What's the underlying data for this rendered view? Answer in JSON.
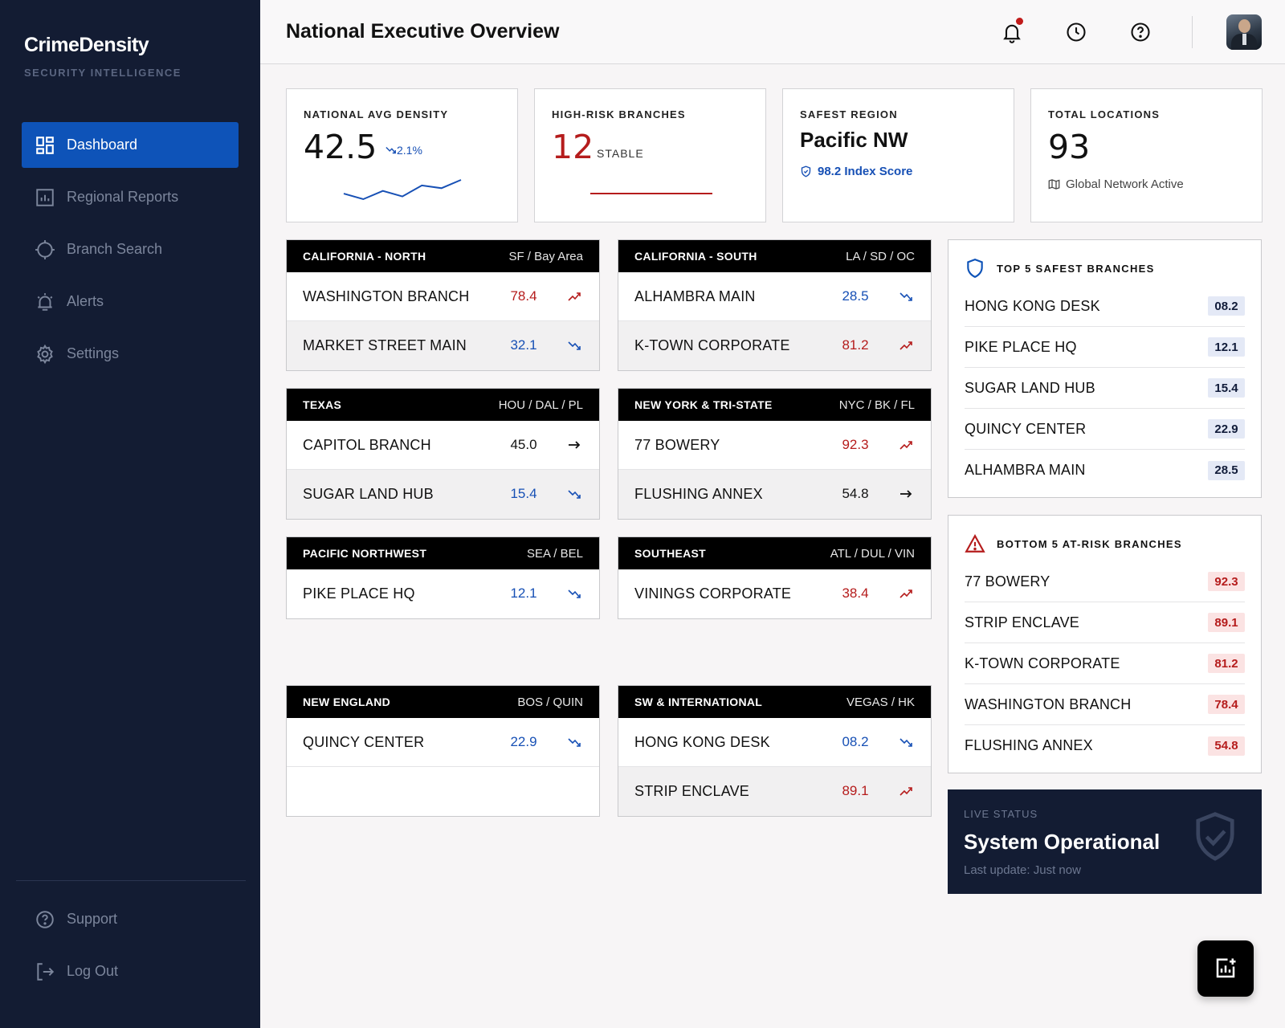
{
  "sidebar": {
    "brand": "CrimeDensity",
    "brand_sub": "SECURITY INTELLIGENCE",
    "items": [
      {
        "label": "Dashboard",
        "icon": "dashboard-icon"
      },
      {
        "label": "Regional Reports",
        "icon": "bar-chart-icon"
      },
      {
        "label": "Branch Search",
        "icon": "crosshair-icon"
      },
      {
        "label": "Alerts",
        "icon": "alarm-icon"
      },
      {
        "label": "Settings",
        "icon": "gear-icon"
      }
    ],
    "bottom": [
      {
        "label": "Support",
        "icon": "help-icon"
      },
      {
        "label": "Log Out",
        "icon": "logout-icon"
      }
    ]
  },
  "header": {
    "title": "National Executive Overview"
  },
  "kpis": {
    "density": {
      "label": "NATIONAL AVG DENSITY",
      "value": "42.5",
      "delta": "2.1%",
      "sparkline": [
        3,
        1,
        4,
        2,
        6,
        5,
        8
      ]
    },
    "high_risk": {
      "label": "HIGH-RISK BRANCHES",
      "value": "12",
      "status": "STABLE"
    },
    "safest": {
      "label": "SAFEST REGION",
      "value": "Pacific NW",
      "sub": "98.2 Index Score"
    },
    "total": {
      "label": "TOTAL LOCATIONS",
      "value": "93",
      "sub": "Global Network Active"
    }
  },
  "regions": [
    {
      "name": "CALIFORNIA - NORTH",
      "code": "SF / Bay Area",
      "rows": [
        {
          "name": "WASHINGTON BRANCH",
          "value": "78.4",
          "trend": "up"
        },
        {
          "name": "MARKET STREET MAIN",
          "value": "32.1",
          "trend": "down"
        }
      ]
    },
    {
      "name": "CALIFORNIA - SOUTH",
      "code": "LA / SD / OC",
      "rows": [
        {
          "name": "ALHAMBRA MAIN",
          "value": "28.5",
          "trend": "down"
        },
        {
          "name": "K-TOWN CORPORATE",
          "value": "81.2",
          "trend": "up"
        }
      ]
    },
    {
      "name": "TEXAS",
      "code": "HOU / DAL / PL",
      "rows": [
        {
          "name": "CAPITOL BRANCH",
          "value": "45.0",
          "trend": "flat"
        },
        {
          "name": "SUGAR LAND HUB",
          "value": "15.4",
          "trend": "down"
        }
      ]
    },
    {
      "name": "NEW YORK & TRI-STATE",
      "code": "NYC / BK / FL",
      "rows": [
        {
          "name": "77 BOWERY",
          "value": "92.3",
          "trend": "up"
        },
        {
          "name": "FLUSHING ANNEX",
          "value": "54.8",
          "trend": "flat"
        }
      ]
    },
    {
      "name": "PACIFIC NORTHWEST",
      "code": "SEA / BEL",
      "rows": [
        {
          "name": "PIKE PLACE HQ",
          "value": "12.1",
          "trend": "down"
        }
      ]
    },
    {
      "name": "SOUTHEAST",
      "code": "ATL / DUL / VIN",
      "rows": [
        {
          "name": "VININGS CORPORATE",
          "value": "38.4",
          "trend": "up"
        }
      ]
    },
    {
      "name": "NEW ENGLAND",
      "code": "BOS / QUIN",
      "rows": [
        {
          "name": "QUINCY CENTER",
          "value": "22.9",
          "trend": "down"
        }
      ]
    },
    {
      "name": "SW & INTERNATIONAL",
      "code": "VEGAS / HK",
      "rows": [
        {
          "name": "HONG KONG DESK",
          "value": "08.2",
          "trend": "down"
        },
        {
          "name": "STRIP ENCLAVE",
          "value": "89.1",
          "trend": "up"
        }
      ]
    }
  ],
  "top_safest": {
    "title": "TOP 5 SAFEST BRANCHES",
    "items": [
      {
        "name": "HONG KONG DESK",
        "value": "08.2"
      },
      {
        "name": "PIKE PLACE HQ",
        "value": "12.1"
      },
      {
        "name": "SUGAR LAND HUB",
        "value": "15.4"
      },
      {
        "name": "QUINCY CENTER",
        "value": "22.9"
      },
      {
        "name": "ALHAMBRA MAIN",
        "value": "28.5"
      }
    ]
  },
  "bottom_risk": {
    "title": "BOTTOM 5 AT-RISK BRANCHES",
    "items": [
      {
        "name": "77 BOWERY",
        "value": "92.3"
      },
      {
        "name": "STRIP ENCLAVE",
        "value": "89.1"
      },
      {
        "name": "K-TOWN CORPORATE",
        "value": "81.2"
      },
      {
        "name": "WASHINGTON BRANCH",
        "value": "78.4"
      },
      {
        "name": "FLUSHING ANNEX",
        "value": "54.8"
      }
    ]
  },
  "live_status": {
    "label": "LIVE STATUS",
    "title": "System Operational",
    "time": "Last update: Just now"
  },
  "colors": {
    "accent": "#0e53b8",
    "danger": "#b51c1c",
    "safe": "#1750b5",
    "sidebar": "#131c33"
  }
}
